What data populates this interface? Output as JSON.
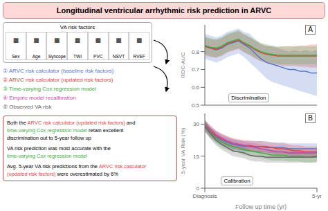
{
  "title": "Longitudinal ventricular arrhythmic risk prediction in ARVC",
  "annotations": [
    {
      "text": "VA risk factors",
      "icon": "■",
      "items": [
        "Sex",
        "Age",
        "Syncope",
        "TWI",
        "PVC",
        "NSVT",
        "RVEF"
      ]
    },
    {
      "lines": [
        [
          {
            "text": "Both the ",
            "color": "black"
          },
          {
            "text": "ARVC risk calculator (updated risk factors)",
            "color": "#dd4444"
          },
          {
            "text": " and",
            "color": "black"
          }
        ],
        [
          {
            "text": "time-varying Cox regression model",
            "color": "#44aa44"
          },
          {
            "text": " retain excellent",
            "color": "black"
          }
        ],
        [
          {
            "text": "discrimination out to 5-year follow up",
            "color": "black"
          }
        ],
        [
          {
            "text": "VA risk prediction was most accurate with the",
            "color": "black"
          }
        ],
        [
          {
            "text": "time-varying Cox regression model",
            "color": "#44aa44"
          }
        ],
        [
          {
            "text": "Avg. 5-year VA risk predictions from the ",
            "color": "black"
          },
          {
            "text": "ARVC risk calculator",
            "color": "#dd4444"
          }
        ],
        [
          {
            "text": "(updated risk factors)",
            "color": "#dd4444"
          },
          {
            "text": " were overestimated by 6%",
            "color": "black"
          }
        ]
      ]
    }
  ],
  "chart_data": [
    {
      "type": "line",
      "title": "A",
      "annotations": [
        "Discrimination"
      ],
      "x": [
        0,
        0.25,
        0.5,
        0.75,
        1.0,
        1.25,
        1.5,
        1.75,
        2.0,
        2.25,
        2.5,
        2.75,
        3.0,
        3.25,
        3.5,
        3.75,
        4.0,
        4.25,
        4.5,
        4.75,
        5.0
      ],
      "series": [
        {
          "name": "① ARVC risk calculator (baseline risk factors)",
          "color": "#5577cc",
          "values": [
            0.83,
            0.82,
            0.81,
            0.82,
            0.84,
            0.85,
            0.86,
            0.84,
            0.82,
            0.79,
            0.76,
            0.74,
            0.73,
            0.72,
            0.71,
            0.7,
            0.7,
            0.69,
            0.69,
            0.68,
            0.68
          ],
          "ci_lo": [
            0.76,
            0.75,
            0.74,
            0.75,
            0.77,
            0.78,
            0.79,
            0.77,
            0.74,
            0.71,
            0.68,
            0.65,
            0.63,
            0.62,
            0.61,
            0.6,
            0.59,
            0.58,
            0.57,
            0.56,
            0.55
          ],
          "ci_hi": [
            0.9,
            0.89,
            0.88,
            0.89,
            0.91,
            0.92,
            0.93,
            0.91,
            0.9,
            0.87,
            0.84,
            0.83,
            0.83,
            0.82,
            0.81,
            0.8,
            0.81,
            0.8,
            0.81,
            0.8,
            0.81
          ]
        },
        {
          "name": "② ARVC risk calculator (updated risk factors)",
          "color": "#dd4444",
          "values": [
            0.83,
            0.82,
            0.815,
            0.825,
            0.845,
            0.855,
            0.865,
            0.845,
            0.83,
            0.81,
            0.795,
            0.785,
            0.78,
            0.775,
            0.775,
            0.775,
            0.775,
            0.775,
            0.775,
            0.775,
            0.775
          ],
          "ci_lo": [
            0.78,
            0.77,
            0.765,
            0.775,
            0.795,
            0.805,
            0.815,
            0.795,
            0.78,
            0.76,
            0.745,
            0.735,
            0.73,
            0.725,
            0.72,
            0.72,
            0.72,
            0.715,
            0.715,
            0.71,
            0.71
          ],
          "ci_hi": [
            0.88,
            0.87,
            0.865,
            0.875,
            0.895,
            0.905,
            0.915,
            0.895,
            0.88,
            0.86,
            0.845,
            0.835,
            0.83,
            0.825,
            0.83,
            0.83,
            0.83,
            0.835,
            0.835,
            0.84,
            0.84
          ]
        },
        {
          "name": "③ Time-varying Cox regression model",
          "color": "#44aa44",
          "values": [
            0.835,
            0.825,
            0.82,
            0.83,
            0.85,
            0.86,
            0.87,
            0.85,
            0.835,
            0.815,
            0.8,
            0.79,
            0.785,
            0.78,
            0.78,
            0.78,
            0.78,
            0.78,
            0.78,
            0.78,
            0.78
          ],
          "ci_lo": [
            0.785,
            0.775,
            0.77,
            0.78,
            0.8,
            0.81,
            0.82,
            0.8,
            0.785,
            0.765,
            0.75,
            0.74,
            0.735,
            0.73,
            0.73,
            0.73,
            0.73,
            0.73,
            0.73,
            0.73,
            0.73
          ],
          "ci_hi": [
            0.885,
            0.875,
            0.87,
            0.88,
            0.9,
            0.91,
            0.92,
            0.9,
            0.885,
            0.865,
            0.85,
            0.84,
            0.835,
            0.83,
            0.83,
            0.83,
            0.83,
            0.83,
            0.83,
            0.83,
            0.83
          ]
        }
      ],
      "xlim": [
        0,
        5
      ],
      "xticks": [],
      "ylim": [
        0.5,
        0.95
      ],
      "yticks": [
        0.5,
        0.6,
        0.7,
        0.8
      ],
      "ylabel": "ROC-AUC",
      "tick_labels": "y"
    },
    {
      "type": "line",
      "title": "B",
      "annotations": [
        "Calibration"
      ],
      "x": [
        0,
        0.25,
        0.5,
        0.75,
        1.0,
        1.25,
        1.5,
        1.75,
        2.0,
        2.25,
        2.5,
        2.75,
        3.0,
        3.25,
        3.5,
        3.75,
        4.0,
        4.25,
        4.5,
        4.75,
        5.0
      ],
      "series": [
        {
          "name": "① ARVC risk calculator (baseline risk factors)",
          "color": "#5577cc",
          "values": [
            29.0,
            26.0,
            24.0,
            22.5,
            21.5,
            20.5,
            20.0,
            19.5,
            19.5,
            19.5,
            19.5,
            19.5,
            19.0,
            19.0,
            19.0,
            18.5,
            18.5,
            18.5,
            18.5,
            18.5,
            18.5
          ],
          "ci_lo": [
            26.5,
            23.5,
            21.5,
            20.0,
            19.0,
            18.0,
            17.5,
            17.0,
            17.0,
            17.0,
            17.0,
            17.0,
            16.5,
            16.5,
            16.5,
            16.0,
            16.0,
            16.0,
            16.0,
            16.0,
            16.0
          ],
          "ci_hi": [
            31.5,
            28.5,
            26.5,
            25.0,
            24.0,
            23.0,
            22.5,
            22.0,
            22.0,
            22.0,
            22.0,
            22.0,
            21.5,
            21.5,
            21.5,
            21.0,
            21.0,
            21.0,
            21.0,
            21.0,
            21.0
          ]
        },
        {
          "name": "② ARVC risk calculator (updated risk factors)",
          "color": "#dd4444",
          "values": [
            29.5,
            26.5,
            24.5,
            23.0,
            22.0,
            21.0,
            20.5,
            20.0,
            20.0,
            19.5,
            19.5,
            19.0,
            19.0,
            18.5,
            18.5,
            18.0,
            17.5,
            17.5,
            17.0,
            17.0,
            17.0
          ],
          "ci_lo": [
            27.0,
            24.0,
            22.0,
            20.5,
            19.5,
            18.5,
            18.0,
            17.5,
            17.5,
            17.0,
            17.0,
            16.5,
            16.5,
            16.0,
            16.0,
            15.5,
            15.0,
            15.0,
            14.5,
            14.5,
            14.5
          ],
          "ci_hi": [
            32.0,
            29.0,
            27.0,
            25.5,
            24.5,
            23.5,
            23.0,
            22.5,
            22.5,
            22.0,
            22.0,
            21.5,
            21.5,
            21.0,
            21.0,
            20.5,
            20.0,
            20.0,
            19.5,
            19.5,
            19.5
          ]
        },
        {
          "name": "③ Time-varying Cox regression model",
          "color": "#44aa44",
          "values": [
            29.5,
            26.0,
            23.5,
            21.5,
            20.5,
            19.5,
            19.0,
            18.0,
            17.5,
            17.0,
            16.5,
            16.0,
            15.5,
            15.5,
            15.5,
            15.0,
            15.0,
            15.0,
            14.5,
            14.5,
            14.5
          ],
          "ci_lo": [
            27.0,
            23.5,
            21.0,
            19.0,
            18.0,
            17.0,
            16.5,
            15.5,
            15.0,
            14.5,
            14.0,
            13.5,
            13.0,
            13.0,
            13.0,
            12.5,
            12.5,
            12.5,
            12.0,
            12.0,
            12.0
          ],
          "ci_hi": [
            32.0,
            28.5,
            26.0,
            24.0,
            23.0,
            22.0,
            21.5,
            20.5,
            20.0,
            19.5,
            19.0,
            18.5,
            18.0,
            18.0,
            18.0,
            17.5,
            17.5,
            17.5,
            17.0,
            17.0,
            17.0
          ]
        },
        {
          "name": "④ Empiric model recalibration",
          "color": "#cc44aa",
          "values": [
            30.0,
            27.5,
            25.0,
            23.5,
            22.0,
            21.0,
            20.5,
            20.0,
            19.5,
            19.0,
            18.5,
            18.0,
            17.5,
            17.0,
            17.0,
            16.5,
            16.5,
            16.5,
            16.5,
            16.5,
            16.5
          ],
          "ci_lo": [
            28.0,
            25.5,
            23.0,
            21.5,
            20.0,
            19.0,
            18.5,
            18.0,
            17.5,
            17.0,
            16.5,
            16.0,
            15.5,
            15.0,
            15.0,
            14.5,
            14.5,
            14.5,
            14.5,
            14.5,
            14.5
          ],
          "ci_hi": [
            32.0,
            29.5,
            27.0,
            25.5,
            24.0,
            23.0,
            22.5,
            22.0,
            21.5,
            21.0,
            20.5,
            20.0,
            19.5,
            19.0,
            19.0,
            18.5,
            18.5,
            18.5,
            18.5,
            18.5,
            18.5
          ]
        },
        {
          "name": "⑤ Observed VA risk",
          "color": "#666666",
          "values": [
            29.0,
            25.5,
            22.5,
            20.5,
            19.0,
            17.5,
            17.0,
            16.5,
            15.5,
            15.0,
            15.0,
            14.5,
            14.5,
            14.5,
            14.5,
            14.5,
            14.5,
            14.5,
            14.5,
            14.5,
            15.0
          ],
          "ci_lo": [
            26.5,
            23.0,
            20.0,
            18.0,
            16.5,
            15.0,
            14.5,
            14.0,
            13.0,
            12.5,
            12.5,
            12.0,
            12.0,
            12.0,
            12.0,
            12.0,
            12.0,
            12.0,
            12.0,
            12.0,
            12.5
          ],
          "ci_hi": [
            31.5,
            28.0,
            25.0,
            23.0,
            21.5,
            20.0,
            19.5,
            19.0,
            18.0,
            17.5,
            17.5,
            17.0,
            17.0,
            17.0,
            17.0,
            17.0,
            17.0,
            17.0,
            17.0,
            17.0,
            17.5
          ]
        }
      ],
      "xlim": [
        0,
        5
      ],
      "xticks": [
        {
          "value": 0,
          "label": "Diagnosis"
        },
        {
          "value": 5,
          "label": "5-yr"
        }
      ],
      "xlabel": "Follow up time (yr)",
      "ylim": [
        0,
        35
      ],
      "yticks": [
        0,
        15,
        30
      ],
      "ylabel": "5-year VA Risk (%)"
    }
  ]
}
